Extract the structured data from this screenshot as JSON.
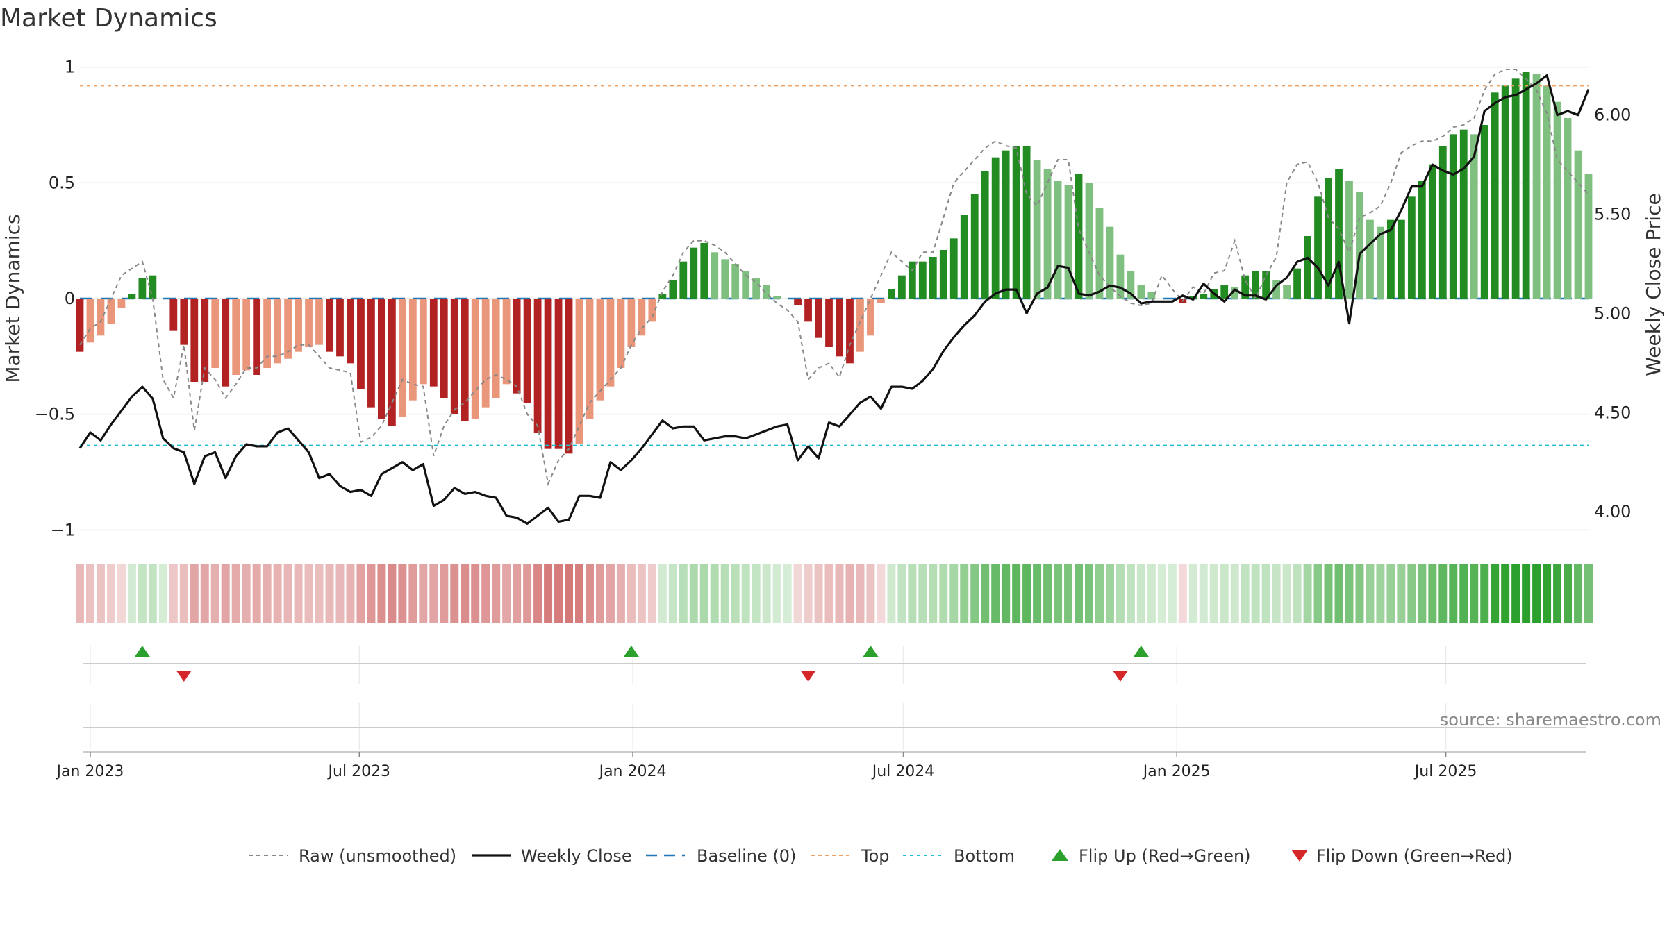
{
  "chart_data": {
    "type": "bar",
    "title": "Market Dynamics",
    "source": "source: sharemaestro.com",
    "ylabel_left": "Market Dynamics",
    "ylabel_right": "Weekly Close Price",
    "ylim_left": [
      -1.05,
      1.05
    ],
    "ylim_right": [
      3.85,
      6.3
    ],
    "yticks_left": [
      {
        "v": 1,
        "label": "1"
      },
      {
        "v": 0.5,
        "label": "0.5"
      },
      {
        "v": 0,
        "label": "0"
      },
      {
        "v": -0.5,
        "label": "−0.5"
      },
      {
        "v": -1,
        "label": "−1"
      }
    ],
    "yticks_right": [
      {
        "v": 6.0,
        "label": "6.00"
      },
      {
        "v": 5.5,
        "label": "5.50"
      },
      {
        "v": 5.0,
        "label": "5.00"
      },
      {
        "v": 4.5,
        "label": "4.50"
      },
      {
        "v": 4.0,
        "label": "4.00"
      }
    ],
    "x_start": "2022-12-25",
    "x_end": "2025-10-05",
    "xticks": [
      {
        "date": "2023-01-01",
        "label": "Jan 2023"
      },
      {
        "date": "2023-07-01",
        "label": "Jul 2023"
      },
      {
        "date": "2024-01-01",
        "label": "Jan 2024"
      },
      {
        "date": "2024-07-01",
        "label": "Jul 2024"
      },
      {
        "date": "2025-01-01",
        "label": "Jan 2025"
      },
      {
        "date": "2025-07-01",
        "label": "Jul 2025"
      }
    ],
    "first_week": "2022-12-25",
    "weeks": 144,
    "dynamics": [
      -0.23,
      -0.19,
      -0.16,
      -0.11,
      -0.04,
      0.02,
      0.09,
      0.1,
      0.0,
      -0.14,
      -0.2,
      -0.36,
      -0.36,
      -0.3,
      -0.38,
      -0.33,
      -0.31,
      -0.33,
      -0.3,
      -0.28,
      -0.26,
      -0.23,
      -0.21,
      -0.2,
      -0.23,
      -0.25,
      -0.28,
      -0.39,
      -0.47,
      -0.52,
      -0.55,
      -0.51,
      -0.44,
      -0.37,
      -0.38,
      -0.43,
      -0.5,
      -0.53,
      -0.52,
      -0.47,
      -0.43,
      -0.37,
      -0.41,
      -0.45,
      -0.58,
      -0.65,
      -0.65,
      -0.67,
      -0.63,
      -0.52,
      -0.44,
      -0.38,
      -0.3,
      -0.21,
      -0.16,
      -0.1,
      0.02,
      0.08,
      0.16,
      0.22,
      0.24,
      0.2,
      0.17,
      0.15,
      0.12,
      0.09,
      0.06,
      0.01,
      0.0,
      -0.03,
      -0.1,
      -0.17,
      -0.21,
      -0.25,
      -0.28,
      -0.23,
      -0.16,
      -0.02,
      0.04,
      0.1,
      0.16,
      0.16,
      0.18,
      0.21,
      0.26,
      0.36,
      0.45,
      0.55,
      0.61,
      0.64,
      0.66,
      0.66,
      0.6,
      0.56,
      0.51,
      0.49,
      0.54,
      0.5,
      0.39,
      0.31,
      0.19,
      0.12,
      0.06,
      0.03,
      0.0,
      0.0,
      -0.02,
      0.01,
      0.02,
      0.04,
      0.06,
      0.05,
      0.1,
      0.12,
      0.12,
      0.08,
      0.06,
      0.13,
      0.27,
      0.44,
      0.52,
      0.56,
      0.51,
      0.46,
      0.34,
      0.31,
      0.34,
      0.34,
      0.44,
      0.51,
      0.58,
      0.66,
      0.71,
      0.73,
      0.71,
      0.75,
      0.89,
      0.92,
      0.95,
      0.98,
      0.97,
      0.92,
      0.85,
      0.78,
      0.64,
      0.54
    ],
    "raw": [
      -0.2,
      -0.13,
      -0.1,
      0.0,
      0.1,
      0.13,
      0.16,
      0.0,
      -0.35,
      -0.43,
      -0.2,
      -0.57,
      -0.3,
      -0.35,
      -0.43,
      -0.37,
      -0.3,
      -0.3,
      -0.25,
      -0.25,
      -0.23,
      -0.2,
      -0.2,
      -0.25,
      -0.3,
      -0.31,
      -0.32,
      -0.62,
      -0.6,
      -0.55,
      -0.45,
      -0.35,
      -0.37,
      -0.38,
      -0.68,
      -0.55,
      -0.48,
      -0.45,
      -0.4,
      -0.35,
      -0.33,
      -0.35,
      -0.38,
      -0.5,
      -0.55,
      -0.8,
      -0.7,
      -0.65,
      -0.55,
      -0.45,
      -0.4,
      -0.35,
      -0.3,
      -0.2,
      -0.13,
      -0.08,
      0.03,
      0.1,
      0.2,
      0.25,
      0.25,
      0.23,
      0.2,
      0.15,
      0.1,
      0.07,
      0.02,
      -0.02,
      -0.05,
      -0.1,
      -0.35,
      -0.3,
      -0.28,
      -0.34,
      -0.2,
      -0.1,
      0.0,
      0.1,
      0.2,
      0.16,
      0.12,
      0.2,
      0.2,
      0.35,
      0.5,
      0.55,
      0.6,
      0.65,
      0.68,
      0.66,
      0.65,
      0.45,
      0.4,
      0.5,
      0.6,
      0.6,
      0.3,
      0.2,
      0.1,
      0.05,
      0.01,
      -0.02,
      -0.03,
      -0.02,
      0.1,
      0.04,
      -0.01,
      0.05,
      0.02,
      0.11,
      0.12,
      0.25,
      0.08,
      0.0,
      0.1,
      0.18,
      0.5,
      0.58,
      0.59,
      0.5,
      0.35,
      0.3,
      0.2,
      0.35,
      0.37,
      0.4,
      0.5,
      0.63,
      0.66,
      0.68,
      0.68,
      0.7,
      0.74,
      0.75,
      0.78,
      0.9,
      0.97,
      0.99,
      0.99,
      0.95,
      0.9,
      0.8,
      0.6,
      0.55,
      0.5,
      0.45
    ],
    "close": [
      4.32,
      4.4,
      4.36,
      4.44,
      4.51,
      4.58,
      4.63,
      4.57,
      4.37,
      4.32,
      4.3,
      4.14,
      4.28,
      4.3,
      4.17,
      4.28,
      4.34,
      4.33,
      4.33,
      4.4,
      4.42,
      4.36,
      4.3,
      4.17,
      4.19,
      4.13,
      4.1,
      4.11,
      4.08,
      4.19,
      4.22,
      4.25,
      4.21,
      4.24,
      4.03,
      4.06,
      4.12,
      4.09,
      4.1,
      4.08,
      4.07,
      3.98,
      3.97,
      3.94,
      3.98,
      4.02,
      3.95,
      3.96,
      4.08,
      4.08,
      4.07,
      4.25,
      4.21,
      4.26,
      4.32,
      4.39,
      4.46,
      4.42,
      4.43,
      4.43,
      4.36,
      4.37,
      4.38,
      4.38,
      4.37,
      4.39,
      4.41,
      4.43,
      4.44,
      4.26,
      4.33,
      4.27,
      4.45,
      4.43,
      4.49,
      4.55,
      4.58,
      4.52,
      4.63,
      4.63,
      4.62,
      4.66,
      4.72,
      4.81,
      4.88,
      4.94,
      4.99,
      5.06,
      5.1,
      5.12,
      5.12,
      5.0,
      5.1,
      5.13,
      5.24,
      5.23,
      5.1,
      5.09,
      5.11,
      5.14,
      5.13,
      5.1,
      5.05,
      5.06,
      5.06,
      5.06,
      5.09,
      5.07,
      5.15,
      5.1,
      5.06,
      5.12,
      5.09,
      5.09,
      5.07,
      5.14,
      5.18,
      5.26,
      5.28,
      5.23,
      5.14,
      5.26,
      4.95,
      5.3,
      5.35,
      5.4,
      5.42,
      5.52,
      5.64,
      5.64,
      5.75,
      5.72,
      5.7,
      5.73,
      5.79,
      6.02,
      6.06,
      6.09,
      6.1,
      6.13,
      6.16,
      6.2,
      6.0,
      6.02,
      6.0,
      6.13
    ],
    "top": 0.92,
    "bottom": -0.635,
    "baseline": 0,
    "flips_up": [
      "2023-02-05",
      "2023-12-31",
      "2024-06-09",
      "2024-12-08"
    ],
    "flips_down": [
      "2023-03-05",
      "2024-04-28",
      "2024-11-24"
    ],
    "legend": [
      {
        "label": "Raw (unsmoothed)",
        "style": "dashed-gray"
      },
      {
        "label": "Weekly Close",
        "style": "solid-black"
      },
      {
        "label": "Baseline (0)",
        "style": "dashed-blue"
      },
      {
        "label": "Top",
        "style": "dotted-orange"
      },
      {
        "label": "Bottom",
        "style": "dotted-cyan"
      },
      {
        "label": "Flip Up (Red→Green)",
        "style": "triangle-up"
      },
      {
        "label": "Flip Down (Green→Red)",
        "style": "triangle-down"
      }
    ],
    "legend_position": "bottom",
    "colors": {
      "strong_green": "#228b22",
      "light_green": "#7fbf7f",
      "strong_red": "#b22222",
      "light_red": "#e9967a",
      "raw": "#888888",
      "close": "#111111",
      "baseline": "#1f77b4",
      "top": "#f0a060",
      "bottom": "#17becf",
      "flip_up": "#2ca02c",
      "flip_down": "#d62728"
    }
  }
}
